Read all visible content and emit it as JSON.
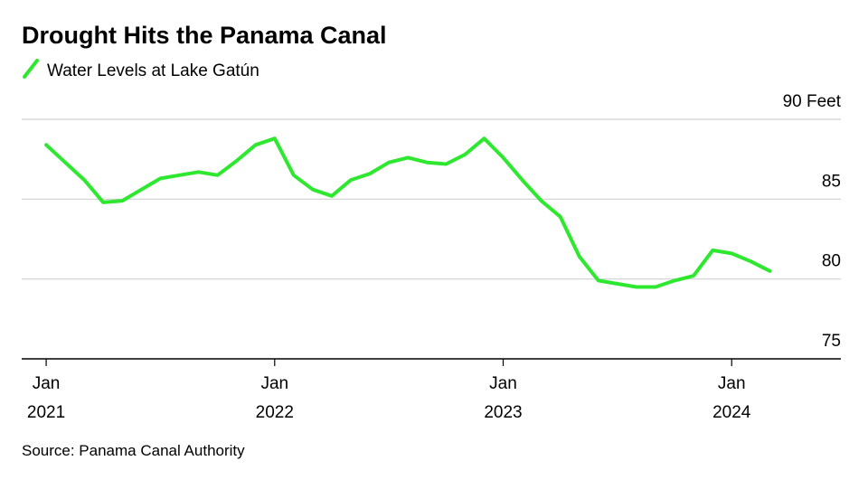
{
  "chart_data": {
    "type": "line",
    "title": "Drought Hits the Panama Canal",
    "source": "Source: Panama Canal Authority",
    "x": [
      "2021-01",
      "2021-02",
      "2021-03",
      "2021-04",
      "2021-05",
      "2021-06",
      "2021-07",
      "2021-08",
      "2021-09",
      "2021-10",
      "2021-11",
      "2021-12",
      "2022-01",
      "2022-02",
      "2022-03",
      "2022-04",
      "2022-05",
      "2022-06",
      "2022-07",
      "2022-08",
      "2022-09",
      "2022-10",
      "2022-11",
      "2022-12",
      "2023-01",
      "2023-02",
      "2023-03",
      "2023-04",
      "2023-05",
      "2023-06",
      "2023-07",
      "2023-08",
      "2023-09",
      "2023-10",
      "2023-11",
      "2023-12",
      "2024-01",
      "2024-02",
      "2024-03"
    ],
    "series": [
      {
        "name": "Water Levels at Lake Gatún",
        "color": "#2ee830",
        "values": [
          88.4,
          87.3,
          86.2,
          84.8,
          84.9,
          85.6,
          86.3,
          86.5,
          86.7,
          86.5,
          87.4,
          88.4,
          88.8,
          86.5,
          85.6,
          85.2,
          86.2,
          86.6,
          87.3,
          87.6,
          87.3,
          87.2,
          87.8,
          88.8,
          87.6,
          86.2,
          84.9,
          83.9,
          81.4,
          79.9,
          79.7,
          79.5,
          79.5,
          79.9,
          80.2,
          81.8,
          81.6,
          81.1,
          80.5
        ]
      }
    ],
    "xlim": [
      "2020-12",
      "2024-07"
    ],
    "xticks": [
      {
        "value": "2021-01",
        "label": "Jan 2021"
      },
      {
        "value": "2022-01",
        "label": "Jan 2022"
      },
      {
        "value": "2023-01",
        "label": "Jan 2023"
      },
      {
        "value": "2024-01",
        "label": "Jan 2024"
      }
    ],
    "ylim": [
      75,
      90
    ],
    "yticks": [
      75,
      80,
      85,
      {
        "value": 90,
        "label": "90 Feet"
      }
    ],
    "grid": true
  }
}
